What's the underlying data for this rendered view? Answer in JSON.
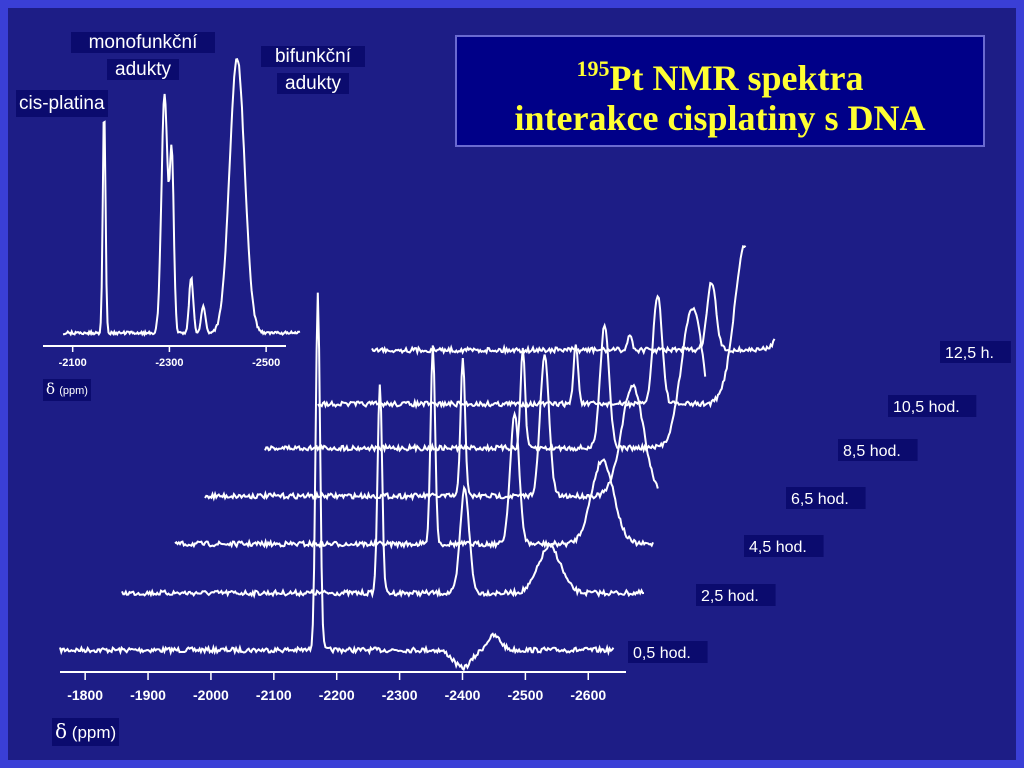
{
  "title": {
    "sup": "195",
    "line1": "Pt NMR spektra",
    "line2": "interakce cisplatiny s DNA"
  },
  "colors": {
    "background": "#1d1d86",
    "frame": "#3a3fd6",
    "trace": "#ffffff",
    "title_text": "#ffff33",
    "title_box": "#000088"
  },
  "labels": {
    "monofunkcni_l1": "monofunkční",
    "monofunkcni_l2": "adukty",
    "bifunkcni_l1": "bifunkční",
    "bifunkcni_l2": "adukty",
    "cis_platina": "cis-platina",
    "delta": "δ",
    "ppm_small": "(ppm)",
    "ppm_main": "(ppm)"
  },
  "chart_data": [
    {
      "type": "line",
      "xlabel": "δ (ppm)",
      "xlim": [
        -2080,
        -2570
      ],
      "x_ticks": [
        -2100,
        -2300,
        -2500
      ],
      "tick_labels": [
        "-2100",
        "-2300",
        "-2500"
      ],
      "annotations": [
        "cis-platina",
        "monofunkční adukty",
        "bifunkční adukty"
      ],
      "series": [
        {
          "peaks": [
            {
              "x": -2165,
              "height": 0.82,
              "width": 4
            },
            {
              "x": -2290,
              "height": 0.87,
              "width": 9
            },
            {
              "x": -2305,
              "height": 0.62,
              "width": 6
            },
            {
              "x": -2345,
              "height": 0.2,
              "width": 6
            },
            {
              "x": -2370,
              "height": 0.1,
              "width": 6
            },
            {
              "x": -2440,
              "height": 1.0,
              "width": 22
            }
          ]
        }
      ]
    },
    {
      "type": "line",
      "xlabel": "δ (ppm)",
      "xlim": [
        -1760,
        -2660
      ],
      "x_ticks": [
        -1800,
        -1900,
        -2000,
        -2100,
        -2200,
        -2300,
        -2400,
        -2500,
        -2600
      ],
      "tick_labels": [
        "-1800",
        "-1900",
        "-2000",
        "-2100",
        "-2200",
        "-2300",
        "-2400",
        "-2500",
        "-2600"
      ],
      "series": [
        {
          "name": "0,5 hod.",
          "peaks": [
            {
              "x": -2170,
              "height": 1.0,
              "width": 5
            },
            {
              "x": -2400,
              "height": -0.05,
              "width": 20
            },
            {
              "x": -2450,
              "height": 0.04,
              "width": 15
            }
          ]
        },
        {
          "name": "2,5 hod.",
          "peaks": [
            {
              "x": -2170,
              "height": 1.0,
              "width": 5
            },
            {
              "x": -2305,
              "height": 0.5,
              "width": 10
            },
            {
              "x": -2440,
              "height": 0.22,
              "width": 25
            }
          ]
        },
        {
          "name": "4,5 hod.",
          "peaks": [
            {
              "x": -2170,
              "height": 1.0,
              "width": 5
            },
            {
              "x": -2300,
              "height": 0.65,
              "width": 10
            },
            {
              "x": -2440,
              "height": 0.42,
              "width": 25
            }
          ]
        },
        {
          "name": "6,5 hod.",
          "peaks": [
            {
              "x": -2170,
              "height": 0.7,
              "width": 5
            },
            {
              "x": -2300,
              "height": 0.7,
              "width": 10
            },
            {
              "x": -2440,
              "height": 0.55,
              "width": 25
            }
          ]
        },
        {
          "name": "8,5 hod.",
          "peaks": [
            {
              "x": -2170,
              "height": 0.5,
              "width": 5
            },
            {
              "x": -2300,
              "height": 0.62,
              "width": 10
            },
            {
              "x": -2440,
              "height": 0.7,
              "width": 25
            }
          ]
        },
        {
          "name": "10,5 hod.",
          "peaks": [
            {
              "x": -2170,
              "height": 0.3,
              "width": 5
            },
            {
              "x": -2300,
              "height": 0.55,
              "width": 10
            },
            {
              "x": -2440,
              "height": 0.8,
              "width": 25
            }
          ]
        },
        {
          "name": "12,5 h.",
          "peaks": [
            {
              "x": -2170,
              "height": 0.1,
              "width": 5
            },
            {
              "x": -2300,
              "height": 0.45,
              "width": 10
            },
            {
              "x": -2440,
              "height": 0.9,
              "width": 25
            }
          ]
        }
      ]
    }
  ]
}
